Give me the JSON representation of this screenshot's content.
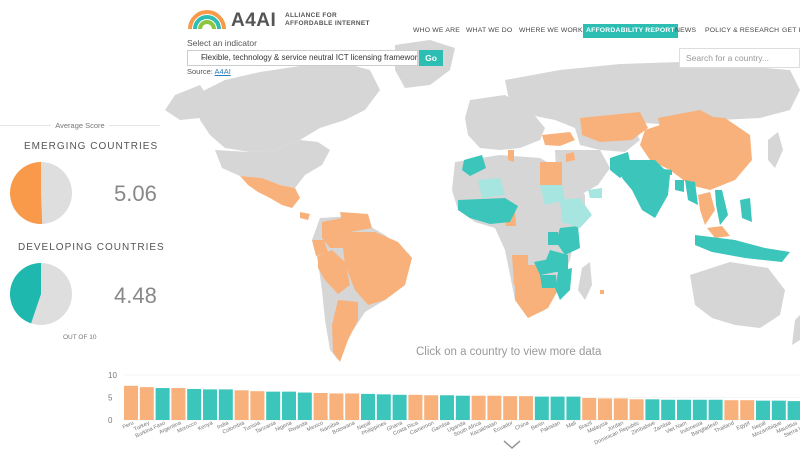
{
  "header": {
    "logo_word": "A4AI",
    "logo_tag_line1": "ALLIANCE FOR",
    "logo_tag_line2": "AFFORDABLE INTERNET",
    "nav": [
      {
        "label": "WHO WE ARE",
        "active": false
      },
      {
        "label": "WHAT WE DO",
        "active": false
      },
      {
        "label": "WHERE WE WORK",
        "active": false
      },
      {
        "label": "AFFORDABILITY REPORT",
        "active": true
      },
      {
        "label": "NEWS",
        "active": false
      },
      {
        "label": "POLICY & RESEARCH",
        "active": false
      },
      {
        "label": "GET IN",
        "active": false
      }
    ],
    "search_placeholder": "Search for a country..."
  },
  "indicator": {
    "label": "Select an indicator",
    "selected": "Flexible, technology & service neutral ICT licensing framework",
    "go_label": "Go",
    "source_prefix": "Source:",
    "source_link": "A4AI"
  },
  "scores": {
    "title": "Average Score",
    "emerging": {
      "label": "EMERGING COUNTRIES",
      "value": "5.06",
      "fraction": 0.506,
      "color": "#f89a4a"
    },
    "developing": {
      "label": "DEVELOPING COUNTRIES",
      "value": "4.48",
      "fraction": 0.448,
      "color": "#1fb8ae"
    },
    "out_of": "OUT OF 10"
  },
  "map": {
    "message": "Click on a country to view more data",
    "colors": {
      "emerging": "#f8b17a",
      "developing": "#3cc5bb",
      "light": "#a6e5e0",
      "none": "#d6d6d6"
    }
  },
  "chart_data": {
    "type": "bar",
    "ylim": [
      0,
      10
    ],
    "yticks": [
      "10",
      "5",
      "0"
    ],
    "colors": {
      "emerging": "#f8b17a",
      "developing": "#3cc5bb"
    },
    "categories": [
      "Peru",
      "Turkey",
      "Burkina Faso",
      "Argentina",
      "Morocco",
      "Kenya",
      "India",
      "Colombia",
      "Tunisia",
      "Tanzania",
      "Nigeria",
      "Rwanda",
      "Mexico",
      "Namibia",
      "Botswana",
      "Nepal",
      "Philippines",
      "Ghana",
      "Costa Rica",
      "Cameroon",
      "Gambia",
      "Uganda",
      "South Africa",
      "Kazakhstan",
      "Ecuador",
      "China",
      "Benin",
      "Pakistan",
      "Mali",
      "Brazil",
      "Malaysia",
      "Jordan",
      "Dominican Republic",
      "Zimbabwe",
      "Zambia",
      "Viet Nam",
      "Indonesia",
      "Bangladesh",
      "Thailand",
      "Egypt",
      "Nepal",
      "Mozambique",
      "Mauritius",
      "Sierra Leone"
    ],
    "values": [
      7.6,
      7.3,
      7.1,
      7.1,
      6.9,
      6.8,
      6.8,
      6.6,
      6.4,
      6.3,
      6.3,
      6.1,
      6.0,
      5.9,
      5.9,
      5.8,
      5.7,
      5.6,
      5.6,
      5.5,
      5.5,
      5.4,
      5.4,
      5.4,
      5.3,
      5.3,
      5.2,
      5.2,
      5.2,
      4.9,
      4.8,
      4.8,
      4.6,
      4.6,
      4.5,
      4.5,
      4.5,
      4.5,
      4.4,
      4.4,
      4.3,
      4.3,
      4.2,
      3.8
    ],
    "groups": [
      "e",
      "e",
      "d",
      "e",
      "d",
      "d",
      "d",
      "e",
      "e",
      "d",
      "d",
      "d",
      "e",
      "e",
      "e",
      "d",
      "d",
      "d",
      "e",
      "e",
      "d",
      "d",
      "e",
      "e",
      "e",
      "e",
      "d",
      "d",
      "d",
      "e",
      "e",
      "e",
      "e",
      "d",
      "d",
      "d",
      "d",
      "d",
      "e",
      "e",
      "d",
      "d",
      "d",
      "d"
    ]
  }
}
